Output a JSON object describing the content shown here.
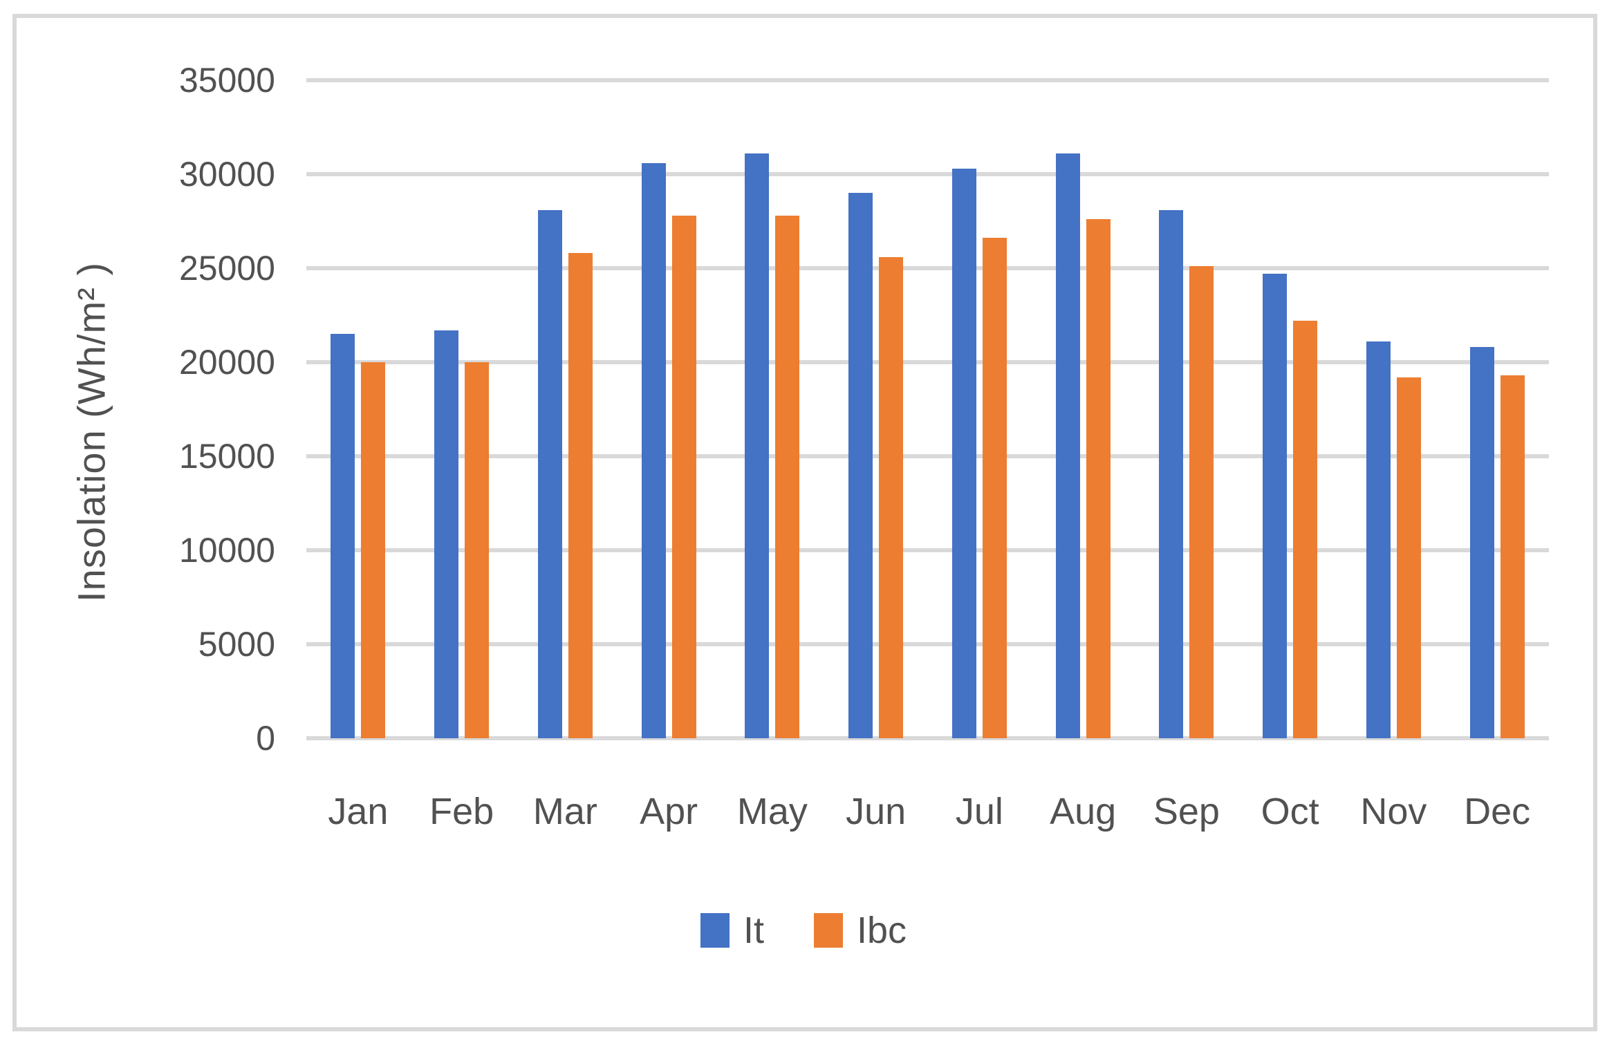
{
  "chart_data": {
    "type": "bar",
    "title": "",
    "xlabel": "",
    "ylabel": "Insolation (Wh/m² )",
    "ylim": [
      0,
      35000
    ],
    "ytick_step": 5000,
    "yticks": [
      35000,
      30000,
      25000,
      20000,
      15000,
      10000,
      5000,
      0
    ],
    "categories": [
      "Jan",
      "Feb",
      "Mar",
      "Apr",
      "May",
      "Jun",
      "Jul",
      "Aug",
      "Sep",
      "Oct",
      "Nov",
      "Dec"
    ],
    "series": [
      {
        "name": "It",
        "color": "#4472C4",
        "values": [
          21500,
          21700,
          28100,
          30600,
          31100,
          29000,
          30300,
          31100,
          28100,
          24700,
          21100,
          20800
        ]
      },
      {
        "name": "Ibc",
        "color": "#ED7D31",
        "values": [
          20000,
          20000,
          25800,
          27800,
          27800,
          25600,
          26600,
          27600,
          25100,
          22200,
          19200,
          19300
        ]
      }
    ],
    "grid": true,
    "legend_position": "bottom",
    "gridline_color": "#D9D9D9",
    "frame_color": "#D9D9D9",
    "text_color": "#515151",
    "background": "#FFFFFF"
  }
}
